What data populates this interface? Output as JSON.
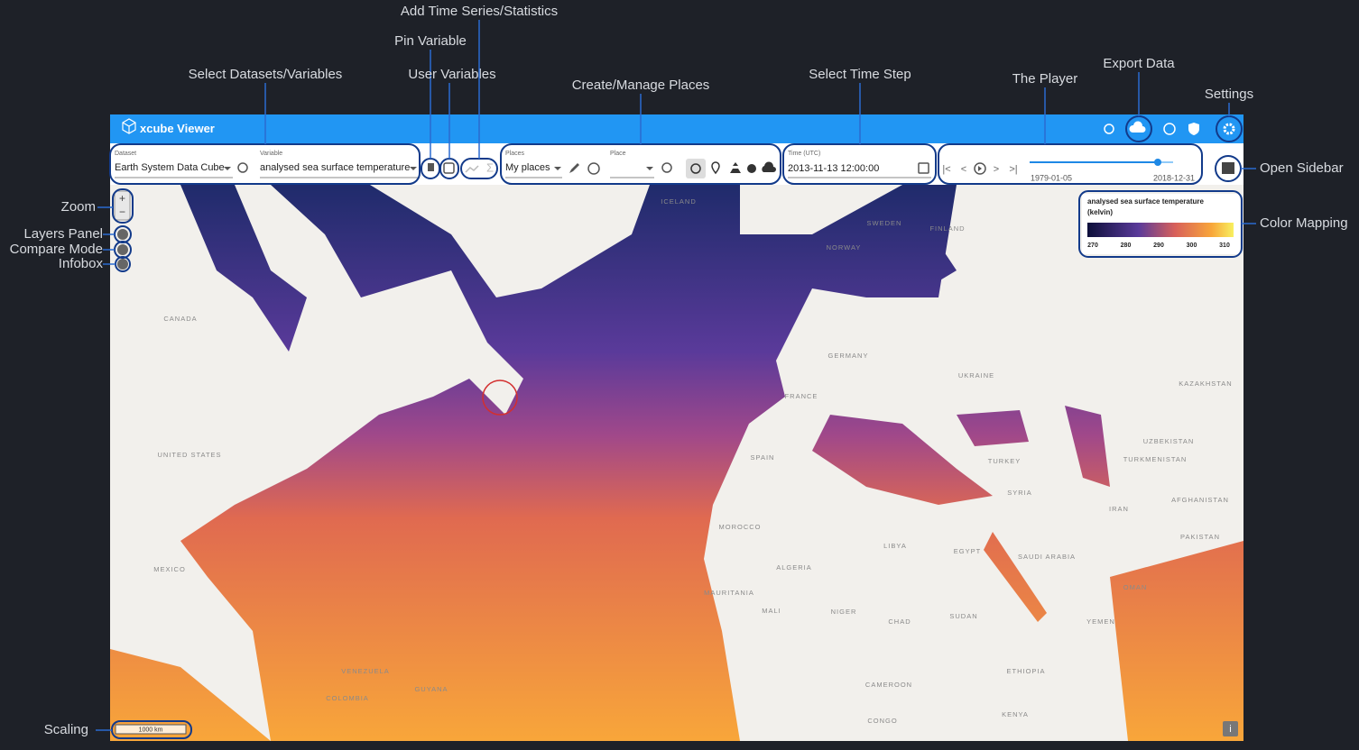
{
  "annotations": [
    "Select Datasets/Variables",
    "Pin Variable",
    "User Variables",
    "Add Time Series/Statistics",
    "Create/Manage Places",
    "Select Time Step",
    "The Player",
    "Export Data",
    "Settings",
    "Open Sidebar",
    "Color Mapping",
    "Zoom",
    "Layers Panel",
    "Compare Mode",
    "Infobox",
    "Scaling"
  ],
  "app": {
    "title": "xcube Viewer",
    "dataset": {
      "label": "Dataset",
      "value": "Earth System Data Cube"
    },
    "variable": {
      "label": "Variable",
      "value": "analysed sea surface temperature"
    },
    "places": {
      "label": "Places",
      "value": "My places"
    },
    "place": {
      "label": "Place"
    },
    "time": {
      "label": "Time (UTC)",
      "value": "2013-11-13 12:00:00"
    },
    "player": {
      "start": "1979-01-05",
      "end": "2018-12-31"
    },
    "color_mapping": {
      "title": "analysed sea surface temperature",
      "unit": "(kelvin)",
      "ticks": [
        270,
        280,
        290,
        300,
        310
      ]
    },
    "scale": "1000 km",
    "map_labels": [
      "CANADA",
      "UNITED STATES",
      "MEXICO",
      "ICELAND",
      "SWEDEN",
      "FINLAND",
      "NORWAY",
      "GERMANY",
      "FRANCE",
      "SPAIN",
      "UKRAINE",
      "TURKEY",
      "SYRIA",
      "IRAN",
      "KAZAKHSTAN",
      "UZBEKISTAN",
      "TURKMENISTAN",
      "AFGHANISTAN",
      "PAKISTAN",
      "SAUDI ARABIA",
      "EGYPT",
      "LIBYA",
      "ALGERIA",
      "MOROCCO",
      "MAURITANIA",
      "MALI",
      "NIGER",
      "CHAD",
      "SUDAN",
      "ETHIOPIA",
      "YEMEN",
      "OMAN",
      "VENEZUELA",
      "COLOMBIA",
      "GUYANA",
      "CAMEROON",
      "CONGO",
      "KENYA"
    ]
  }
}
